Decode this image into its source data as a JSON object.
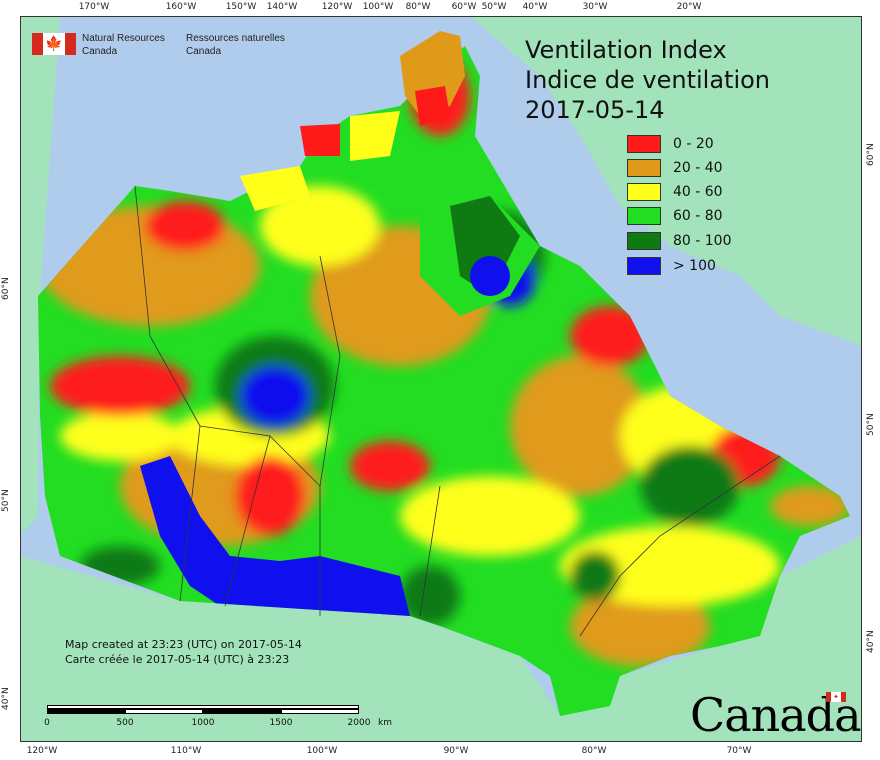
{
  "header": {
    "agency_en_line1": "Natural Resources",
    "agency_en_line2": "Canada",
    "agency_fr_line1": "Ressources naturelles",
    "agency_fr_line2": "Canada",
    "flag_icon": "canada-flag-icon"
  },
  "title": {
    "line1": "Ventilation Index",
    "line2": "Indice de ventilation",
    "date": "2017-05-14"
  },
  "legend": [
    {
      "label": "0 - 20",
      "color": "#ff1a1a"
    },
    {
      "label": "20 - 40",
      "color": "#e09a1a"
    },
    {
      "label": "40 - 60",
      "color": "#ffff1a"
    },
    {
      "label": "60 - 80",
      "color": "#22dd22"
    },
    {
      "label": "80 - 100",
      "color": "#0f7a12"
    },
    {
      "label": "> 100",
      "color": "#1010ee"
    }
  ],
  "footer": {
    "created_en": "Map created at 23:23 (UTC) on 2017-05-14",
    "created_fr": "Carte créée le 2017-05-14 (UTC) à 23:23"
  },
  "scale_bar": {
    "labels": [
      "0",
      "500",
      "1000",
      "1500",
      "2000"
    ],
    "unit": "km"
  },
  "wordmark": "Canada",
  "graticule": {
    "top_ticks": [
      "170°W",
      "160°W",
      "150°W",
      "140°W",
      "120°W",
      "100°W",
      "80°W",
      "60°W",
      "50°W",
      "40°W",
      "30°W",
      "20°W"
    ],
    "bottom_ticks": [
      "120°W",
      "110°W",
      "100°W",
      "90°W",
      "80°W",
      "70°W"
    ],
    "left_ticks": [
      "60°N",
      "50°N",
      "40°N"
    ],
    "right_ticks": [
      "60°N",
      "50°N",
      "40°N"
    ]
  },
  "colors": {
    "water": "#b0ccec",
    "land_outside": "#a3e3bb",
    "frame": "#333333"
  }
}
